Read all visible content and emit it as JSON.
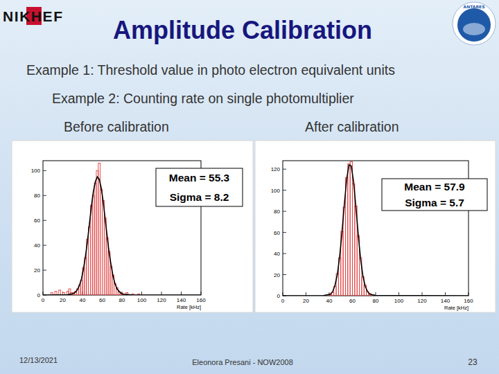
{
  "slide": {
    "title": "Amplitude Calibration",
    "lines": [
      "Example 1: Threshold value in photo electron equivalent units",
      "Example 2: Counting rate on single photomultiplier"
    ],
    "footer": {
      "date": "12/13/2021",
      "author": "Eleonora Presani - NOW2008",
      "page": "23"
    },
    "logos": [
      "NIKHEF",
      "ANTARES"
    ]
  },
  "chart_data": [
    {
      "type": "histogram",
      "title": "Before calibration",
      "xlabel": "Rate [kHz]",
      "bins": [
        0,
        2,
        4,
        6,
        8,
        10,
        12,
        14,
        16,
        18,
        20,
        22,
        24,
        26,
        28,
        30,
        32,
        34,
        36,
        38,
        40,
        42,
        44,
        46,
        48,
        50,
        52,
        54,
        56,
        58,
        60,
        62,
        64,
        66,
        68,
        70,
        72,
        74,
        76,
        78,
        80,
        82,
        84,
        86,
        88,
        90,
        92,
        94,
        96,
        98,
        100,
        102,
        104,
        106,
        108,
        110,
        112,
        114,
        116,
        118,
        120,
        122,
        124,
        126,
        128,
        130,
        132,
        134,
        136,
        138,
        140,
        142,
        144,
        146,
        148,
        150,
        152,
        154,
        156,
        158,
        160
      ],
      "values": [
        0,
        0,
        0,
        0,
        2,
        0,
        3,
        0,
        4,
        0,
        2,
        0,
        3,
        5,
        2,
        2,
        3,
        5,
        8,
        12,
        22,
        30,
        45,
        55,
        72,
        80,
        90,
        100,
        106,
        85,
        76,
        62,
        46,
        35,
        23,
        16,
        9,
        6,
        3,
        2,
        1,
        0,
        2,
        0,
        0,
        1,
        0,
        0,
        1,
        0,
        0,
        0,
        0,
        0,
        0,
        0,
        0,
        0,
        0,
        0,
        0,
        0,
        0,
        0,
        0,
        0,
        0,
        0,
        0,
        0,
        0,
        0,
        0,
        0,
        0,
        0,
        0,
        0,
        0,
        0
      ],
      "color": "#e03c3c",
      "xlim": [
        0,
        160
      ],
      "xticks": [
        0,
        20,
        40,
        60,
        80,
        100,
        120,
        140,
        160
      ],
      "ylim": [
        0,
        108
      ],
      "yticks": [
        0,
        20,
        40,
        60,
        80,
        100
      ],
      "annotations": [
        "Mean = 55.3",
        "Sigma = 8.2"
      ],
      "fit": {
        "type": "line",
        "color": "#000000",
        "line_style": "solid",
        "x": [
          0,
          25,
          31,
          33,
          35,
          37,
          39,
          41,
          43,
          45,
          47,
          49,
          51,
          53,
          55,
          57,
          59,
          61,
          63,
          65,
          67,
          69,
          71,
          73,
          75,
          77,
          79,
          81,
          90,
          160
        ],
        "values": [
          0,
          0.2,
          1.2,
          2.4,
          4.5,
          7.9,
          13,
          21,
          31,
          43,
          57,
          71,
          83,
          91,
          95,
          93,
          86,
          75,
          61,
          47,
          34,
          24,
          15,
          9,
          5,
          3,
          1.5,
          0.7,
          0.1,
          0
        ]
      }
    },
    {
      "type": "histogram",
      "title": "After calibration",
      "xlabel": "Rate [kHz]",
      "bins": [
        0,
        2,
        4,
        6,
        8,
        10,
        12,
        14,
        16,
        18,
        20,
        22,
        24,
        26,
        28,
        30,
        32,
        34,
        36,
        38,
        40,
        42,
        44,
        46,
        48,
        50,
        52,
        54,
        56,
        58,
        60,
        62,
        64,
        66,
        68,
        70,
        72,
        74,
        76,
        78,
        80,
        82,
        84,
        86,
        88,
        90,
        92,
        94,
        96,
        98,
        100,
        102,
        104,
        106,
        108,
        110,
        112,
        114,
        116,
        118,
        120,
        122,
        124,
        126,
        128,
        130,
        132,
        134,
        136,
        138,
        140,
        142,
        144,
        146,
        148,
        150,
        152,
        154,
        156,
        158,
        160
      ],
      "values": [
        0,
        0,
        0,
        0,
        0,
        0,
        0,
        0,
        0,
        0,
        0,
        0,
        0,
        0,
        0,
        0,
        0,
        0,
        0,
        0,
        1,
        3,
        9,
        21,
        36,
        61,
        84,
        112,
        125,
        127,
        106,
        85,
        57,
        36,
        18,
        10,
        4,
        2,
        1,
        0,
        0,
        0,
        0,
        0,
        0,
        0,
        0,
        0,
        0,
        0,
        0,
        0,
        0,
        0,
        0,
        0,
        0,
        0,
        0,
        0,
        0,
        0,
        0,
        0,
        0,
        0,
        0,
        0,
        0,
        0,
        0,
        0,
        0,
        0,
        0,
        0,
        0,
        0,
        0,
        0
      ],
      "color": "#e03c3c",
      "xlim": [
        0,
        160
      ],
      "xticks": [
        0,
        20,
        40,
        60,
        80,
        100,
        120,
        140,
        160
      ],
      "ylim": [
        0,
        128
      ],
      "yticks": [
        0,
        20,
        40,
        60,
        80,
        100,
        120
      ],
      "annotations": [
        "Mean = 57.9",
        "Sigma = 5.7"
      ],
      "fit": {
        "type": "line",
        "color": "#000000",
        "line_style": "solid",
        "x": [
          0,
          35,
          41,
          43,
          45,
          47,
          49,
          51,
          53,
          55,
          57,
          59,
          61,
          63,
          65,
          67,
          69,
          71,
          73,
          75,
          80,
          160
        ],
        "values": [
          0,
          0.1,
          1.5,
          4,
          10,
          20,
          37,
          60,
          86,
          110,
          124,
          123,
          108,
          84,
          58,
          35,
          19,
          9,
          4,
          1.5,
          0.3,
          0
        ]
      }
    }
  ]
}
